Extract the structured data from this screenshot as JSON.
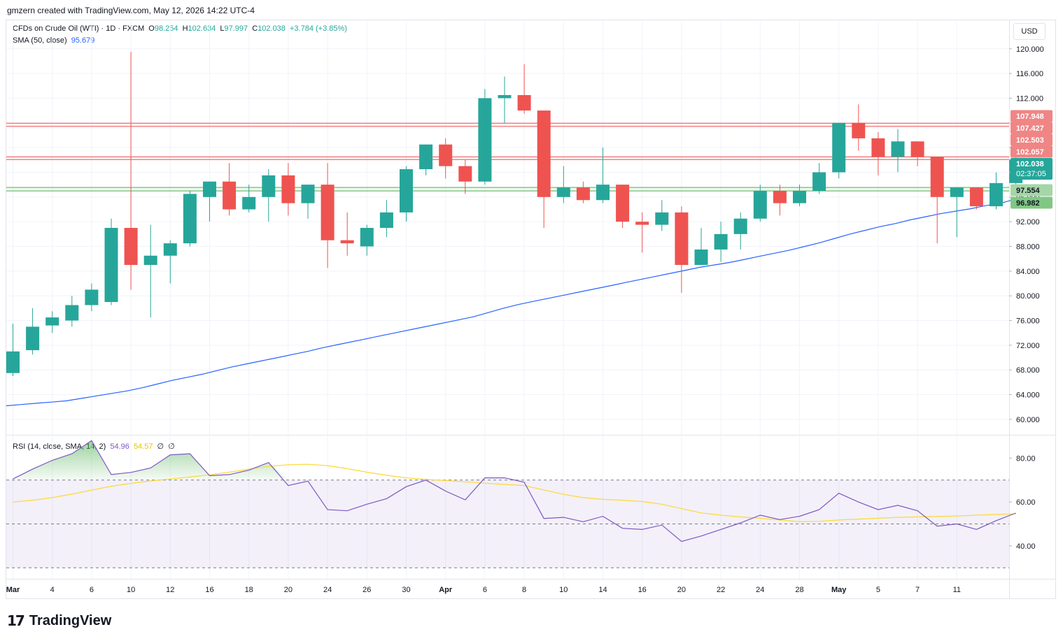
{
  "header": {
    "caption": "gmzern created with TradingView.com, May 12, 2026 14:22 UTC-4"
  },
  "legend": {
    "symbol": "CFDs on Crude Oil (WTI) · 1D · FXCM",
    "o_label": "O",
    "o_value": "98.254",
    "h_label": "H",
    "h_value": "102.634",
    "l_label": "L",
    "l_value": "97.997",
    "c_label": "C",
    "c_value": "102.038",
    "change": "+3.784 (+3.85%)",
    "sma_label": "SMA (50, close)",
    "sma_value": "95.679",
    "rsi_label": "RSI (14, close, SMA, 14, 2)",
    "rsi_value": "54.96",
    "rsi_sma_value": "54.57",
    "rsi_extra1": "∅",
    "rsi_extra2": "∅"
  },
  "currency": "USD",
  "branding": {
    "logo_text": "TradingView",
    "logo_mark": "17"
  },
  "colors": {
    "up": "#26a69a",
    "down": "#ef5350",
    "sma": "#2962ff",
    "rsi": "#7e57c2",
    "rsi_sma": "#fdd835",
    "grid": "#f0f3fa"
  },
  "chart_data": {
    "type": "candlestick",
    "price_axis": {
      "ticks": [
        "120.000",
        "116.000",
        "112.000",
        "108.000",
        "104.000",
        "100.000",
        "96.000",
        "92.000",
        "88.000",
        "84.000",
        "80.000",
        "76.000",
        "72.000",
        "68.000",
        "64.000",
        "60.000"
      ],
      "tick_values": [
        120,
        116,
        112,
        108,
        104,
        100,
        96,
        92,
        88,
        84,
        80,
        76,
        72,
        68,
        64,
        60
      ],
      "range": [
        57.5,
        124.5
      ]
    },
    "x_axis": {
      "labels": [
        "Mar",
        "4",
        "6",
        "10",
        "12",
        "16",
        "18",
        "20",
        "24",
        "26",
        "30",
        "Apr",
        "6",
        "8",
        "10",
        "14",
        "16",
        "20",
        "22",
        "24",
        "28",
        "May",
        "5",
        "7",
        "11"
      ],
      "label_index": [
        0,
        2,
        4,
        6,
        8,
        10,
        12,
        14,
        16,
        18,
        20,
        22,
        24,
        26,
        28,
        30,
        32,
        34,
        36,
        38,
        40,
        42,
        44,
        46,
        48
      ]
    },
    "candles": [
      {
        "o": 67.5,
        "h": 75.5,
        "l": 67.0,
        "c": 71.0
      },
      {
        "o": 71.2,
        "h": 78.0,
        "l": 70.5,
        "c": 75.0
      },
      {
        "o": 75.2,
        "h": 77.5,
        "l": 74.0,
        "c": 76.5
      },
      {
        "o": 76.0,
        "h": 80.0,
        "l": 75.0,
        "c": 78.5
      },
      {
        "o": 78.5,
        "h": 82.0,
        "l": 77.5,
        "c": 81.0
      },
      {
        "o": 79.0,
        "h": 92.5,
        "l": 78.5,
        "c": 91.0
      },
      {
        "o": 91.0,
        "h": 119.5,
        "l": 81.0,
        "c": 85.0
      },
      {
        "o": 85.0,
        "h": 91.5,
        "l": 76.5,
        "c": 86.5
      },
      {
        "o": 86.5,
        "h": 89.0,
        "l": 82.0,
        "c": 88.5
      },
      {
        "o": 88.5,
        "h": 97.0,
        "l": 88.0,
        "c": 96.5
      },
      {
        "o": 96.0,
        "h": 98.5,
        "l": 92.0,
        "c": 98.5
      },
      {
        "o": 98.5,
        "h": 101.5,
        "l": 93.0,
        "c": 94.0
      },
      {
        "o": 94.0,
        "h": 98.0,
        "l": 93.5,
        "c": 96.0
      },
      {
        "o": 96.0,
        "h": 100.5,
        "l": 92.0,
        "c": 99.5
      },
      {
        "o": 99.5,
        "h": 101.5,
        "l": 93.0,
        "c": 95.0
      },
      {
        "o": 95.0,
        "h": 98.0,
        "l": 92.5,
        "c": 98.0
      },
      {
        "o": 98.0,
        "h": 101.5,
        "l": 84.5,
        "c": 89.0
      },
      {
        "o": 89.0,
        "h": 93.5,
        "l": 86.5,
        "c": 88.5
      },
      {
        "o": 88.0,
        "h": 91.5,
        "l": 86.5,
        "c": 91.0
      },
      {
        "o": 91.0,
        "h": 95.5,
        "l": 89.5,
        "c": 93.5
      },
      {
        "o": 93.5,
        "h": 101.0,
        "l": 92.0,
        "c": 100.5
      },
      {
        "o": 100.5,
        "h": 104.5,
        "l": 99.5,
        "c": 104.5
      },
      {
        "o": 104.5,
        "h": 105.5,
        "l": 99.0,
        "c": 101.0
      },
      {
        "o": 101.0,
        "h": 102.0,
        "l": 96.5,
        "c": 98.5
      },
      {
        "o": 98.5,
        "h": 113.5,
        "l": 98.0,
        "c": 112.0
      },
      {
        "o": 112.0,
        "h": 115.5,
        "l": 108.0,
        "c": 112.5
      },
      {
        "o": 112.5,
        "h": 117.5,
        "l": 109.5,
        "c": 110.0
      },
      {
        "o": 110.0,
        "h": 110.0,
        "l": 91.0,
        "c": 96.0
      },
      {
        "o": 96.0,
        "h": 101.0,
        "l": 95.0,
        "c": 97.5
      },
      {
        "o": 97.5,
        "h": 98.5,
        "l": 95.0,
        "c": 95.5
      },
      {
        "o": 95.5,
        "h": 104.0,
        "l": 95.0,
        "c": 98.0
      },
      {
        "o": 98.0,
        "h": 98.0,
        "l": 91.0,
        "c": 92.0
      },
      {
        "o": 92.0,
        "h": 93.5,
        "l": 87.0,
        "c": 91.5
      },
      {
        "o": 91.5,
        "h": 95.5,
        "l": 90.5,
        "c": 93.5
      },
      {
        "o": 93.5,
        "h": 94.5,
        "l": 80.5,
        "c": 85.0
      },
      {
        "o": 85.0,
        "h": 91.0,
        "l": 85.0,
        "c": 87.5
      },
      {
        "o": 87.5,
        "h": 92.0,
        "l": 85.5,
        "c": 90.0
      },
      {
        "o": 90.0,
        "h": 93.5,
        "l": 87.5,
        "c": 92.5
      },
      {
        "o": 92.5,
        "h": 98.0,
        "l": 92.0,
        "c": 97.0
      },
      {
        "o": 97.0,
        "h": 98.0,
        "l": 93.0,
        "c": 95.0
      },
      {
        "o": 95.0,
        "h": 98.0,
        "l": 94.5,
        "c": 97.0
      },
      {
        "o": 97.0,
        "h": 101.5,
        "l": 96.5,
        "c": 100.0
      },
      {
        "o": 100.0,
        "h": 108.0,
        "l": 99.0,
        "c": 108.0
      },
      {
        "o": 108.0,
        "h": 111.0,
        "l": 103.5,
        "c": 105.5
      },
      {
        "o": 105.5,
        "h": 106.5,
        "l": 99.5,
        "c": 102.5
      },
      {
        "o": 102.5,
        "h": 107.0,
        "l": 100.0,
        "c": 105.0
      },
      {
        "o": 105.0,
        "h": 105.0,
        "l": 101.0,
        "c": 102.5
      },
      {
        "o": 102.5,
        "h": 102.5,
        "l": 88.5,
        "c": 96.0
      },
      {
        "o": 96.0,
        "h": 97.5,
        "l": 89.5,
        "c": 97.5
      },
      {
        "o": 97.5,
        "h": 97.5,
        "l": 94.0,
        "c": 94.5
      },
      {
        "o": 94.5,
        "h": 100.0,
        "l": 94.0,
        "c": 98.254
      },
      {
        "o": 98.254,
        "h": 102.634,
        "l": 97.997,
        "c": 102.038
      }
    ],
    "sma_50": [
      62.2,
      62.4,
      62.6,
      62.8,
      63.0,
      63.4,
      63.8,
      64.2,
      64.6,
      65.1,
      65.7,
      66.3,
      66.8,
      67.3,
      67.9,
      68.5,
      69.0,
      69.5,
      70.0,
      70.5,
      71.0,
      71.6,
      72.1,
      72.6,
      73.1,
      73.6,
      74.1,
      74.6,
      75.1,
      75.6,
      76.1,
      76.6,
      77.3,
      78.0,
      78.6,
      79.1,
      79.6,
      80.1,
      80.6,
      81.1,
      81.6,
      82.1,
      82.6,
      83.1,
      83.6,
      84.1,
      84.6,
      85.0,
      85.4,
      85.9,
      86.4,
      86.9,
      87.4,
      88.0,
      88.6,
      89.3,
      90.0,
      90.6,
      91.2,
      91.7,
      92.3,
      92.8,
      93.3,
      93.7,
      94.1,
      94.6,
      95.0,
      95.679
    ],
    "sma_points_candle_index_start": -1,
    "levels": [
      {
        "value": 107.948,
        "label": "107.948",
        "color": "#ef5350",
        "kind": "resistance"
      },
      {
        "value": 107.427,
        "label": "107.427",
        "color": "#ef5350",
        "kind": "resistance"
      },
      {
        "value": 102.503,
        "label": "102.503",
        "color": "#ef5350",
        "kind": "resistance"
      },
      {
        "value": 102.057,
        "label": "102.057",
        "color": "#ef5350",
        "kind": "resistance"
      },
      {
        "value": 97.554,
        "label": "97.554",
        "color": "#4caf50",
        "kind": "support"
      },
      {
        "value": 96.982,
        "label": "96.982",
        "color": "#4caf50",
        "kind": "support"
      }
    ],
    "last_price": {
      "label": "102.038",
      "timer": "02:37:05"
    },
    "rsi": {
      "ticks": [
        "80.00",
        "60.00",
        "40.00"
      ],
      "tick_values": [
        80,
        60,
        40
      ],
      "range": [
        25,
        90
      ],
      "band_upper": 70,
      "band_lower": 30,
      "mid": 50,
      "values": [
        70.5,
        75.0,
        79.0,
        82.0,
        88.0,
        72.5,
        73.5,
        75.5,
        81.5,
        82.0,
        72.0,
        72.5,
        74.5,
        78.0,
        67.5,
        69.5,
        56.5,
        56.0,
        59.0,
        61.5,
        67.0,
        70.0,
        65.0,
        61.0,
        71.0,
        71.0,
        69.0,
        52.5,
        53.0,
        51.0,
        53.5,
        48.0,
        47.5,
        49.5,
        42.0,
        44.5,
        47.5,
        50.5,
        54.0,
        52.0,
        53.5,
        56.5,
        64.0,
        60.0,
        56.5,
        58.5,
        56.0,
        49.0,
        50.0,
        47.5,
        51.5,
        54.96
      ],
      "sma_values": [
        60.0,
        60.8,
        62.0,
        63.6,
        65.4,
        67.2,
        68.5,
        69.6,
        70.5,
        71.4,
        72.4,
        73.6,
        75.0,
        76.2,
        77.0,
        77.2,
        76.6,
        75.2,
        73.6,
        72.2,
        71.0,
        70.3,
        69.8,
        69.2,
        68.6,
        68.0,
        67.5,
        65.5,
        63.5,
        62.0,
        61.2,
        60.8,
        60.2,
        59.0,
        57.0,
        55.0,
        54.0,
        53.2,
        52.6,
        51.8,
        51.0,
        51.2,
        51.8,
        52.2,
        52.6,
        53.0,
        53.2,
        53.4,
        53.6,
        54.0,
        54.3,
        54.57
      ]
    }
  }
}
